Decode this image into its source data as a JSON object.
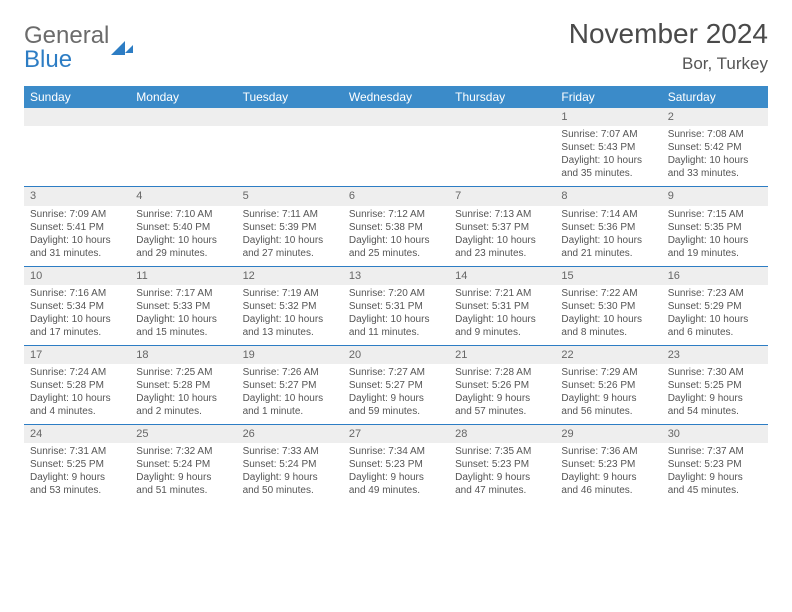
{
  "brand": {
    "name1": "General",
    "name2": "Blue"
  },
  "title": "November 2024",
  "location": "Bor, Turkey",
  "columns": [
    "Sunday",
    "Monday",
    "Tuesday",
    "Wednesday",
    "Thursday",
    "Friday",
    "Saturday"
  ],
  "header_bg": "#3b8bc9",
  "row_border": "#2d7dc4",
  "daynum_bg": "#eeeeee",
  "weeks": [
    [
      null,
      null,
      null,
      null,
      null,
      {
        "n": "1",
        "sr": "7:07 AM",
        "ss": "5:43 PM",
        "dl": "10 hours and 35 minutes."
      },
      {
        "n": "2",
        "sr": "7:08 AM",
        "ss": "5:42 PM",
        "dl": "10 hours and 33 minutes."
      }
    ],
    [
      {
        "n": "3",
        "sr": "7:09 AM",
        "ss": "5:41 PM",
        "dl": "10 hours and 31 minutes."
      },
      {
        "n": "4",
        "sr": "7:10 AM",
        "ss": "5:40 PM",
        "dl": "10 hours and 29 minutes."
      },
      {
        "n": "5",
        "sr": "7:11 AM",
        "ss": "5:39 PM",
        "dl": "10 hours and 27 minutes."
      },
      {
        "n": "6",
        "sr": "7:12 AM",
        "ss": "5:38 PM",
        "dl": "10 hours and 25 minutes."
      },
      {
        "n": "7",
        "sr": "7:13 AM",
        "ss": "5:37 PM",
        "dl": "10 hours and 23 minutes."
      },
      {
        "n": "8",
        "sr": "7:14 AM",
        "ss": "5:36 PM",
        "dl": "10 hours and 21 minutes."
      },
      {
        "n": "9",
        "sr": "7:15 AM",
        "ss": "5:35 PM",
        "dl": "10 hours and 19 minutes."
      }
    ],
    [
      {
        "n": "10",
        "sr": "7:16 AM",
        "ss": "5:34 PM",
        "dl": "10 hours and 17 minutes."
      },
      {
        "n": "11",
        "sr": "7:17 AM",
        "ss": "5:33 PM",
        "dl": "10 hours and 15 minutes."
      },
      {
        "n": "12",
        "sr": "7:19 AM",
        "ss": "5:32 PM",
        "dl": "10 hours and 13 minutes."
      },
      {
        "n": "13",
        "sr": "7:20 AM",
        "ss": "5:31 PM",
        "dl": "10 hours and 11 minutes."
      },
      {
        "n": "14",
        "sr": "7:21 AM",
        "ss": "5:31 PM",
        "dl": "10 hours and 9 minutes."
      },
      {
        "n": "15",
        "sr": "7:22 AM",
        "ss": "5:30 PM",
        "dl": "10 hours and 8 minutes."
      },
      {
        "n": "16",
        "sr": "7:23 AM",
        "ss": "5:29 PM",
        "dl": "10 hours and 6 minutes."
      }
    ],
    [
      {
        "n": "17",
        "sr": "7:24 AM",
        "ss": "5:28 PM",
        "dl": "10 hours and 4 minutes."
      },
      {
        "n": "18",
        "sr": "7:25 AM",
        "ss": "5:28 PM",
        "dl": "10 hours and 2 minutes."
      },
      {
        "n": "19",
        "sr": "7:26 AM",
        "ss": "5:27 PM",
        "dl": "10 hours and 1 minute."
      },
      {
        "n": "20",
        "sr": "7:27 AM",
        "ss": "5:27 PM",
        "dl": "9 hours and 59 minutes."
      },
      {
        "n": "21",
        "sr": "7:28 AM",
        "ss": "5:26 PM",
        "dl": "9 hours and 57 minutes."
      },
      {
        "n": "22",
        "sr": "7:29 AM",
        "ss": "5:26 PM",
        "dl": "9 hours and 56 minutes."
      },
      {
        "n": "23",
        "sr": "7:30 AM",
        "ss": "5:25 PM",
        "dl": "9 hours and 54 minutes."
      }
    ],
    [
      {
        "n": "24",
        "sr": "7:31 AM",
        "ss": "5:25 PM",
        "dl": "9 hours and 53 minutes."
      },
      {
        "n": "25",
        "sr": "7:32 AM",
        "ss": "5:24 PM",
        "dl": "9 hours and 51 minutes."
      },
      {
        "n": "26",
        "sr": "7:33 AM",
        "ss": "5:24 PM",
        "dl": "9 hours and 50 minutes."
      },
      {
        "n": "27",
        "sr": "7:34 AM",
        "ss": "5:23 PM",
        "dl": "9 hours and 49 minutes."
      },
      {
        "n": "28",
        "sr": "7:35 AM",
        "ss": "5:23 PM",
        "dl": "9 hours and 47 minutes."
      },
      {
        "n": "29",
        "sr": "7:36 AM",
        "ss": "5:23 PM",
        "dl": "9 hours and 46 minutes."
      },
      {
        "n": "30",
        "sr": "7:37 AM",
        "ss": "5:23 PM",
        "dl": "9 hours and 45 minutes."
      }
    ]
  ],
  "labels": {
    "sunrise": "Sunrise: ",
    "sunset": "Sunset: ",
    "daylight": "Daylight: "
  }
}
